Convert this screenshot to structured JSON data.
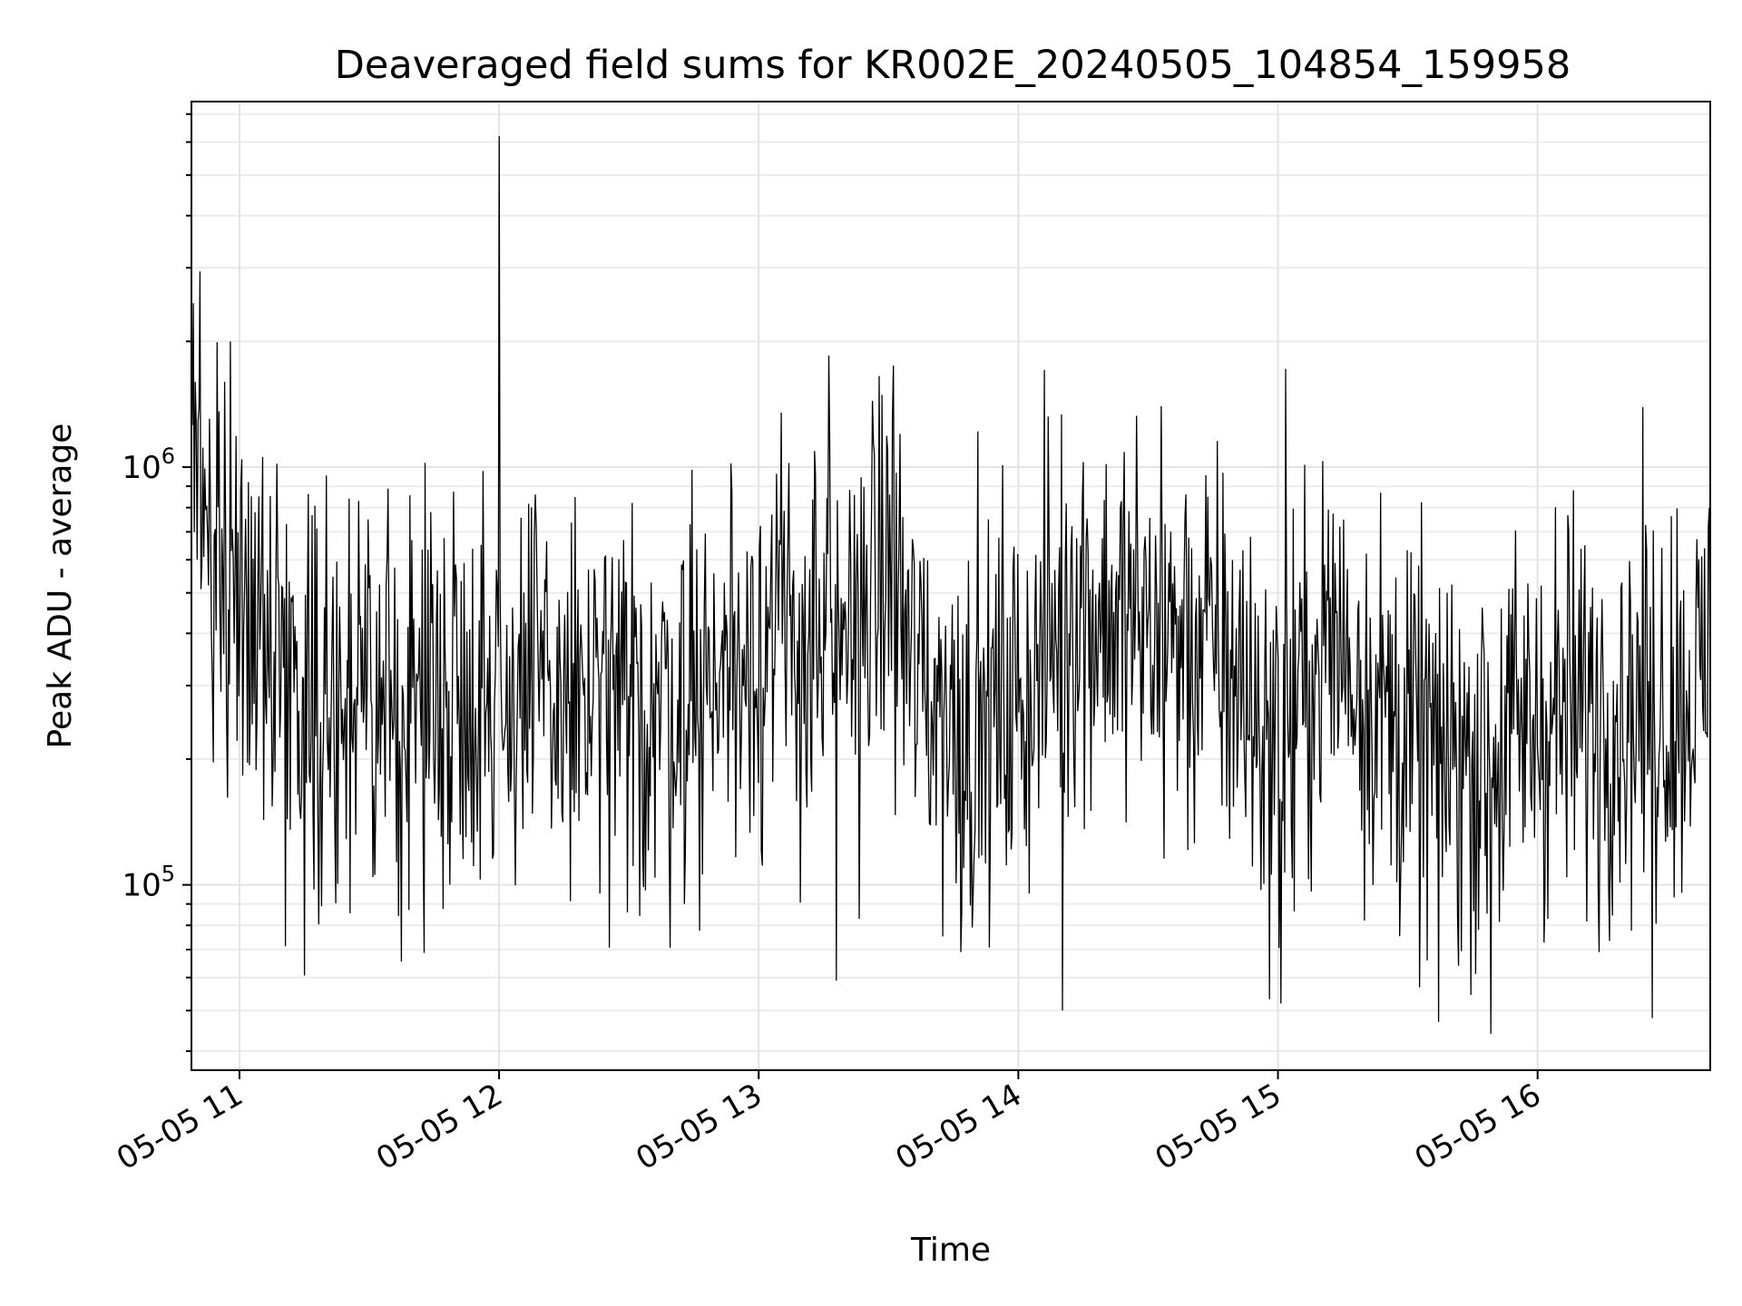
{
  "chart_data": {
    "type": "line",
    "title": "Deaveraged field sums for KR002E_20240505_104854_159958",
    "xlabel": "Time",
    "ylabel": "Peak ADU - average",
    "x_ticks": [
      "05-05 11",
      "05-05 12",
      "05-05 13",
      "05-05 14",
      "05-05 15",
      "05-05 16"
    ],
    "x_tick_hours": [
      11,
      12,
      13,
      14,
      15,
      16
    ],
    "xlim_hours": [
      10.815,
      16.665
    ],
    "xlim": [
      "2024-05-05 10:48:54",
      "2024-05-05 16:39:54"
    ],
    "yscale": "log",
    "ylim": [
      36000,
      7500000
    ],
    "y_ticks": [
      {
        "base": "10",
        "exp": "5",
        "value": 100000
      },
      {
        "base": "10",
        "exp": "6",
        "value": 1000000
      }
    ],
    "grid": true,
    "line_color": "#000000",
    "series": [
      {
        "x_hours": [
          10.815,
          11.0,
          11.2,
          11.5,
          11.8,
          12.0,
          12.2,
          12.5,
          12.8,
          13.0,
          13.3,
          13.5,
          13.6,
          13.8,
          14.0,
          14.2,
          14.5,
          14.8,
          15.0,
          15.2,
          15.5,
          15.8,
          16.0,
          16.3,
          16.5,
          16.665
        ],
        "y": [
          900000,
          550000,
          300000,
          250000,
          300000,
          300000,
          280000,
          250000,
          300000,
          400000,
          350000,
          600000,
          320000,
          230000,
          270000,
          480000,
          400000,
          350000,
          200000,
          400000,
          220000,
          200000,
          250000,
          270000,
          280000,
          300000
        ]
      }
    ],
    "peaks": [
      {
        "x_hour": 12.0,
        "y": 6200000
      },
      {
        "x_hour": 13.27,
        "y": 1850000
      },
      {
        "x_hour": 13.52,
        "y": 1750000
      },
      {
        "x_hour": 15.03,
        "y": 1720000
      },
      {
        "x_hour": 14.55,
        "y": 1400000
      },
      {
        "x_hour": 10.83,
        "y": 1600000
      }
    ],
    "dips": [
      {
        "x_hour": 15.82,
        "y": 44000
      },
      {
        "x_hour": 15.62,
        "y": 47000
      },
      {
        "x_hour": 16.44,
        "y": 48000
      },
      {
        "x_hour": 14.17,
        "y": 50000
      },
      {
        "x_hour": 15.01,
        "y": 52000
      },
      {
        "x_hour": 13.3,
        "y": 59000
      }
    ]
  }
}
